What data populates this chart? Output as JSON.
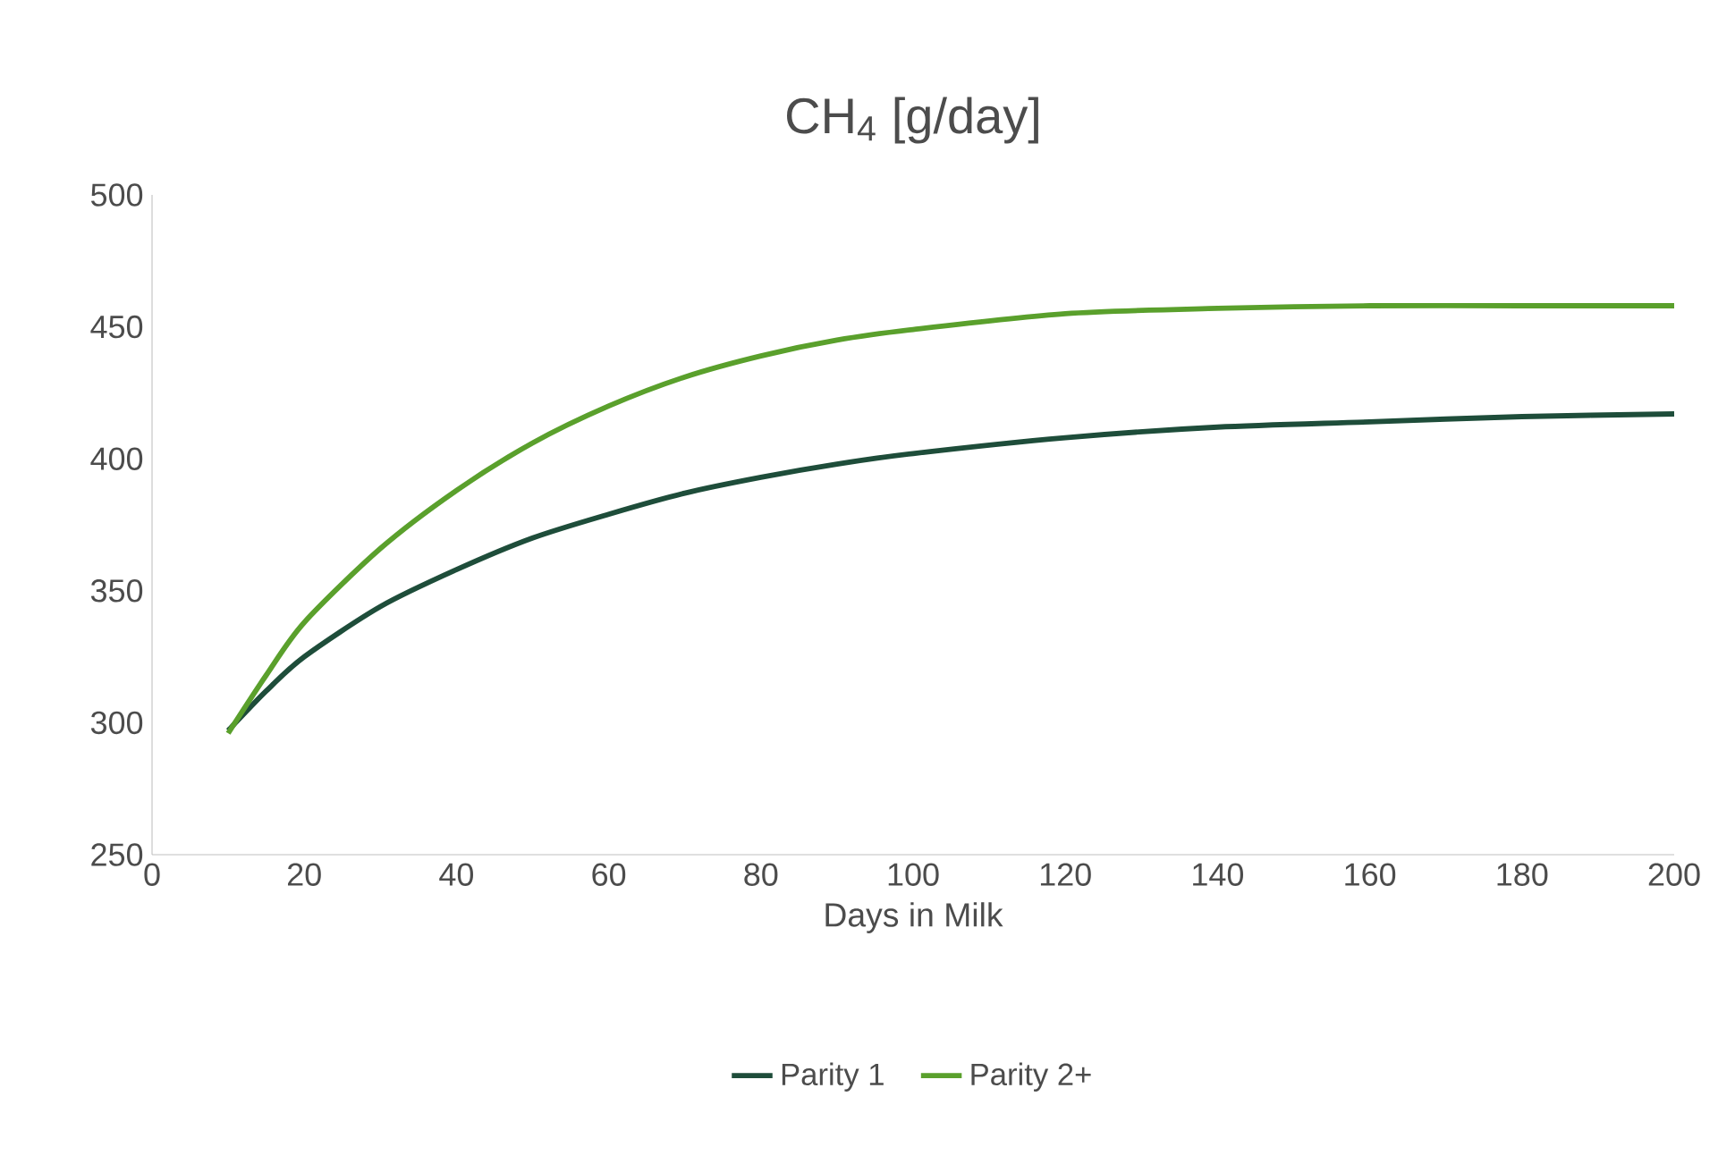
{
  "chart_data": {
    "type": "line",
    "title": "CH$_{4}$ [g/day]",
    "xlabel": "Days in Milk",
    "xlim": [
      0,
      200
    ],
    "xticks": [
      0,
      20,
      40,
      60,
      80,
      100,
      120,
      140,
      160,
      180,
      200
    ],
    "ylim": [
      250,
      500
    ],
    "yticks": [
      250,
      300,
      350,
      400,
      450,
      500
    ],
    "legend": "bottom",
    "grid": false,
    "marker": "none",
    "line_style": "solid",
    "series": [
      {
        "name": "Parity 1",
        "color": "#1e4d3a",
        "x": [
          10,
          15,
          20,
          30,
          40,
          50,
          60,
          70,
          80,
          90,
          100,
          120,
          140,
          160,
          180,
          200
        ],
        "values": [
          297,
          312,
          325,
          344,
          358,
          370,
          379,
          387,
          393,
          398,
          402,
          408,
          412,
          414,
          416,
          417
        ]
      },
      {
        "name": "Parity 2+",
        "color": "#5aa02c",
        "x": [
          10,
          15,
          20,
          30,
          40,
          50,
          60,
          70,
          80,
          90,
          100,
          120,
          140,
          160,
          180,
          200
        ],
        "values": [
          296,
          318,
          338,
          366,
          388,
          406,
          420,
          431,
          439,
          445,
          449,
          455,
          457,
          458,
          458,
          458
        ]
      }
    ]
  }
}
